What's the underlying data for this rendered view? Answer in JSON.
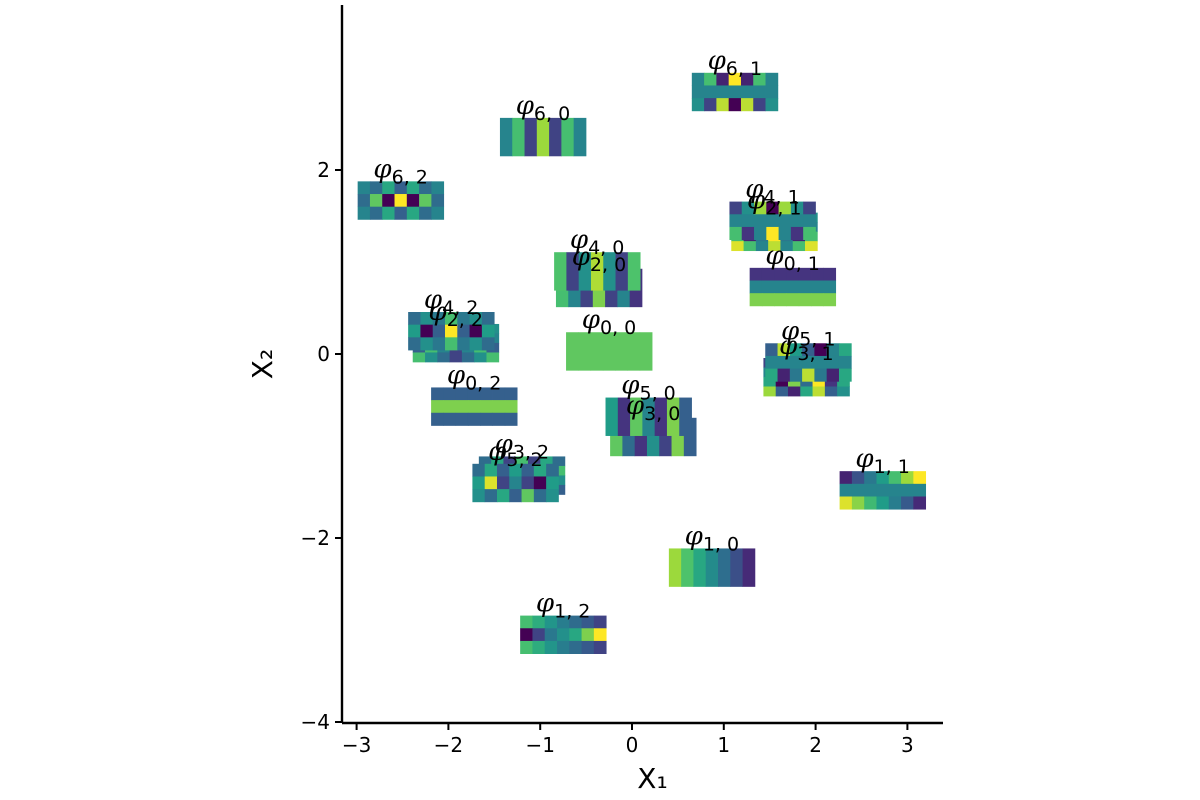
{
  "chart_data": {
    "type": "scatter",
    "xlabel": "X₁",
    "ylabel": "X₂",
    "xlim": [
      -3.18,
      3.38
    ],
    "ylim": [
      -4.0,
      3.8
    ],
    "xticks": [
      -3,
      -2,
      -1,
      0,
      1,
      2,
      3
    ],
    "yticks": [
      -4,
      -2,
      0,
      2
    ],
    "grid": false,
    "colors": {
      "viridis": [
        "#440154",
        "#46327e",
        "#365c8d",
        "#277f8e",
        "#1fa187",
        "#4ac16d",
        "#a0da39",
        "#fde725"
      ]
    },
    "points": [
      {
        "label": "φ",
        "sub": "0, 0",
        "x": -0.25,
        "y": 0.03,
        "rows": [
          [
            0.75,
            0.75,
            0.75,
            0.75,
            0.75,
            0.75,
            0.75
          ]
        ]
      },
      {
        "label": "φ",
        "sub": "0, 1",
        "x": 1.75,
        "y": 0.73,
        "rows": [
          [
            0.15,
            0.15,
            0.15,
            0.15,
            0.15,
            0.15,
            0.15
          ],
          [
            0.45,
            0.45,
            0.45,
            0.45,
            0.45,
            0.45,
            0.45
          ],
          [
            0.8,
            0.8,
            0.8,
            0.8,
            0.8,
            0.8,
            0.8
          ]
        ]
      },
      {
        "label": "φ",
        "sub": "0, 2",
        "x": -1.72,
        "y": -0.57,
        "rows": [
          [
            0.3,
            0.3,
            0.3,
            0.3,
            0.3,
            0.3,
            0.3
          ],
          [
            0.8,
            0.8,
            0.8,
            0.8,
            0.8,
            0.8,
            0.8
          ],
          [
            0.3,
            0.3,
            0.3,
            0.3,
            0.3,
            0.3,
            0.3
          ]
        ]
      },
      {
        "label": "φ",
        "sub": "1, 0",
        "x": 0.87,
        "y": -2.32,
        "rows": [
          [
            0.85,
            0.72,
            0.6,
            0.48,
            0.36,
            0.24,
            0.12
          ]
        ]
      },
      {
        "label": "φ",
        "sub": "1, 1",
        "x": 2.73,
        "y": -1.48,
        "rows": [
          [
            0.1,
            0.25,
            0.4,
            0.55,
            0.7,
            0.85,
            1.0
          ],
          [
            0.45,
            0.45,
            0.45,
            0.45,
            0.45,
            0.45,
            0.45
          ],
          [
            0.95,
            0.82,
            0.68,
            0.55,
            0.42,
            0.28,
            0.12
          ]
        ]
      },
      {
        "label": "φ",
        "sub": "1, 2",
        "x": -0.75,
        "y": -3.05,
        "rows": [
          [
            0.7,
            0.62,
            0.52,
            0.42,
            0.35,
            0.28,
            0.2
          ],
          [
            0.0,
            0.2,
            0.4,
            0.5,
            0.6,
            0.8,
            1.0
          ],
          [
            0.7,
            0.62,
            0.52,
            0.42,
            0.35,
            0.28,
            0.2
          ]
        ]
      },
      {
        "label": "φ",
        "sub": "2, 0",
        "x": -0.36,
        "y": 0.72,
        "rows": [
          [
            0.7,
            0.45,
            0.2,
            0.8,
            0.2,
            0.45,
            0.15
          ]
        ]
      },
      {
        "label": "φ",
        "sub": "2, 1",
        "x": 1.55,
        "y": 1.33,
        "rows": [
          [
            0.15,
            0.55,
            0.9,
            0.0,
            0.6,
            0.2,
            0.5
          ],
          [
            0.45,
            0.45,
            0.45,
            0.45,
            0.45,
            0.45,
            0.45
          ],
          [
            0.7,
            0.1,
            0.4,
            1.0,
            0.4,
            0.1,
            0.7
          ],
          [
            0.95,
            0.7,
            0.45,
            0.9,
            0.45,
            0.7,
            0.95
          ]
        ]
      },
      {
        "label": "φ",
        "sub": "2, 2",
        "x": -1.92,
        "y": 0.12,
        "rows": [
          [
            0.7,
            0.35,
            0.5,
            0.35,
            0.7,
            0.35,
            0.5
          ],
          [
            0.45,
            0.1,
            0.55,
            0.95,
            0.55,
            0.1,
            0.45
          ],
          [
            0.3,
            0.7,
            0.45,
            0.2,
            0.45,
            0.7,
            0.3
          ],
          [
            0.7,
            0.5,
            0.35,
            0.2,
            0.35,
            0.5,
            0.7
          ]
        ]
      },
      {
        "label": "φ",
        "sub": "3, 0",
        "x": 0.23,
        "y": -0.9,
        "rows": [
          [
            0.75,
            0.35,
            0.15,
            0.5,
            0.2,
            0.8,
            0.3
          ]
        ]
      },
      {
        "label": "φ",
        "sub": "3, 1",
        "x": 1.9,
        "y": -0.25,
        "rows": [
          [
            0.2,
            0.45,
            0.9,
            0.0,
            0.9,
            0.45,
            0.2
          ],
          [
            0.45,
            0.45,
            0.45,
            0.45,
            0.45,
            0.45,
            0.45
          ],
          [
            0.6,
            0.0,
            0.8,
            0.35,
            1.0,
            0.15,
            0.6
          ],
          [
            0.85,
            0.3,
            0.1,
            0.6,
            0.9,
            0.3,
            0.5
          ]
        ]
      },
      {
        "label": "φ",
        "sub": "3, 2",
        "x": -1.2,
        "y": -1.32,
        "rows": [
          [
            0.35,
            0.6,
            0.2,
            0.7,
            0.2,
            0.6,
            0.35
          ],
          [
            0.7,
            0.3,
            0.6,
            0.45,
            0.6,
            0.3,
            0.7
          ],
          [
            0.5,
            0.8,
            0.4,
            0.1,
            0.4,
            0.8,
            0.5
          ],
          [
            0.3,
            0.55,
            0.7,
            0.2,
            0.7,
            0.55,
            0.3
          ]
        ]
      },
      {
        "label": "φ",
        "sub": "4, 0",
        "x": -0.38,
        "y": 0.9,
        "rows": [
          [
            0.72,
            0.2,
            0.5,
            0.88,
            0.5,
            0.2,
            0.72
          ]
        ]
      },
      {
        "label": "φ",
        "sub": "4, 1",
        "x": 1.53,
        "y": 1.45,
        "rows": [
          [
            0.2,
            0.5,
            0.85,
            0.0,
            0.85,
            0.5,
            0.2
          ],
          [
            0.45,
            0.45,
            0.45,
            0.45,
            0.45,
            0.45,
            0.45
          ],
          [
            0.7,
            0.15,
            0.45,
            1.0,
            0.45,
            0.15,
            0.7
          ]
        ]
      },
      {
        "label": "φ",
        "sub": "4, 2",
        "x": -1.97,
        "y": 0.25,
        "rows": [
          [
            0.35,
            0.5,
            0.4,
            0.7,
            0.4,
            0.5,
            0.35
          ],
          [
            0.55,
            0.0,
            0.3,
            1.0,
            0.3,
            0.0,
            0.55
          ],
          [
            0.35,
            0.5,
            0.4,
            0.7,
            0.4,
            0.5,
            0.35
          ]
        ]
      },
      {
        "label": "φ",
        "sub": "5, 0",
        "x": 0.18,
        "y": -0.68,
        "rows": [
          [
            0.55,
            0.15,
            0.75,
            0.45,
            0.15,
            0.8,
            0.3
          ]
        ]
      },
      {
        "label": "φ",
        "sub": "5, 1",
        "x": 1.92,
        "y": -0.09,
        "rows": [
          [
            0.3,
            0.9,
            0.55,
            0.3,
            0.0,
            0.45,
            0.6
          ],
          [
            0.45,
            0.45,
            0.45,
            0.45,
            0.45,
            0.45,
            0.45
          ],
          [
            0.6,
            0.1,
            0.4,
            0.9,
            0.4,
            0.1,
            0.6
          ]
        ]
      },
      {
        "label": "φ",
        "sub": "5, 2",
        "x": -1.27,
        "y": -1.4,
        "rows": [
          [
            0.35,
            0.6,
            0.3,
            0.55,
            0.3,
            0.6,
            0.35
          ],
          [
            0.55,
            0.95,
            0.2,
            0.45,
            0.2,
            0.0,
            0.55
          ],
          [
            0.5,
            0.35,
            0.6,
            0.3,
            0.75,
            0.35,
            0.5
          ]
        ]
      },
      {
        "label": "φ",
        "sub": "6, 0",
        "x": -0.97,
        "y": 2.36,
        "rows": [
          [
            0.45,
            0.7,
            0.2,
            0.85,
            0.2,
            0.7,
            0.45
          ]
        ]
      },
      {
        "label": "φ",
        "sub": "6, 1",
        "x": 1.12,
        "y": 2.85,
        "rows": [
          [
            0.45,
            0.7,
            0.1,
            1.0,
            0.1,
            0.7,
            0.45
          ],
          [
            0.45,
            0.45,
            0.45,
            0.45,
            0.45,
            0.45,
            0.45
          ],
          [
            0.5,
            0.2,
            0.9,
            0.0,
            0.9,
            0.2,
            0.5
          ]
        ]
      },
      {
        "label": "φ",
        "sub": "6, 2",
        "x": -2.52,
        "y": 1.67,
        "rows": [
          [
            0.45,
            0.35,
            0.6,
            0.3,
            0.6,
            0.35,
            0.45
          ],
          [
            0.35,
            0.75,
            0.0,
            1.0,
            0.0,
            0.75,
            0.35
          ],
          [
            0.45,
            0.35,
            0.6,
            0.3,
            0.6,
            0.35,
            0.45
          ]
        ]
      }
    ]
  }
}
